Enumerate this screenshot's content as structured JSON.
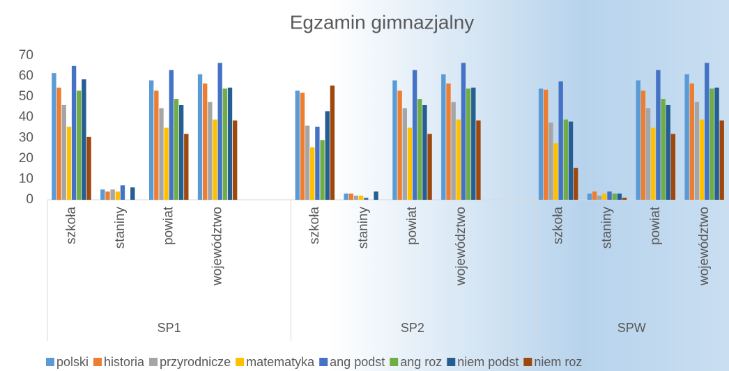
{
  "chart_data": {
    "type": "bar",
    "title": "Egzamin gimnazjalny",
    "groups": [
      {
        "name": "SP1",
        "categories": [
          "szkoła",
          "staniny",
          "powiat",
          "województwo",
          null
        ]
      },
      {
        "name": "SP2",
        "categories": [
          "szkoła",
          "staniny",
          "powiat",
          "województwo",
          null
        ]
      },
      {
        "name": "SPW",
        "categories": [
          "szkoła",
          "staniny",
          "powiat",
          "województwo"
        ]
      }
    ],
    "series": [
      {
        "name": "polski",
        "color": "#5b9bd5",
        "values": [
          61.5,
          5,
          58,
          61,
          null,
          53,
          3,
          58,
          61,
          null,
          54,
          3,
          58,
          61
        ]
      },
      {
        "name": "historia",
        "color": "#ed7d31",
        "values": [
          54.5,
          4,
          53,
          56.5,
          null,
          52,
          3,
          53,
          56.5,
          null,
          53.5,
          4,
          53,
          56.5
        ]
      },
      {
        "name": "przyrodnicze",
        "color": "#a5a5a5",
        "values": [
          46,
          5,
          44.5,
          47.5,
          null,
          36,
          2,
          44.5,
          47.5,
          null,
          37.5,
          2,
          44.5,
          47.5
        ]
      },
      {
        "name": "matematyka",
        "color": "#ffc000",
        "values": [
          35.5,
          4,
          35,
          39,
          null,
          25.5,
          2,
          35,
          39,
          null,
          27.5,
          3,
          35,
          39
        ]
      },
      {
        "name": "ang podst",
        "color": "#4472c4",
        "values": [
          65,
          7,
          63,
          66.5,
          null,
          35.5,
          1,
          63,
          66.5,
          null,
          57.5,
          4,
          63,
          66.5
        ]
      },
      {
        "name": "ang roz",
        "color": "#70ad47",
        "values": [
          53,
          null,
          49,
          54,
          null,
          29,
          null,
          49,
          54,
          null,
          39,
          3,
          49,
          54
        ]
      },
      {
        "name": "niem podst",
        "color": "#255e91",
        "values": [
          58.5,
          6,
          46,
          54.5,
          null,
          43,
          4,
          46,
          54.5,
          null,
          38,
          3,
          46,
          54.5
        ]
      },
      {
        "name": "niem roz",
        "color": "#9e480e",
        "values": [
          30.5,
          null,
          32,
          38.5,
          null,
          55.5,
          null,
          32,
          38.5,
          null,
          15.5,
          1,
          32,
          38.5
        ]
      }
    ],
    "ylim": [
      0,
      70
    ],
    "yticks": [
      0,
      10,
      20,
      30,
      40,
      50,
      60,
      70
    ]
  }
}
